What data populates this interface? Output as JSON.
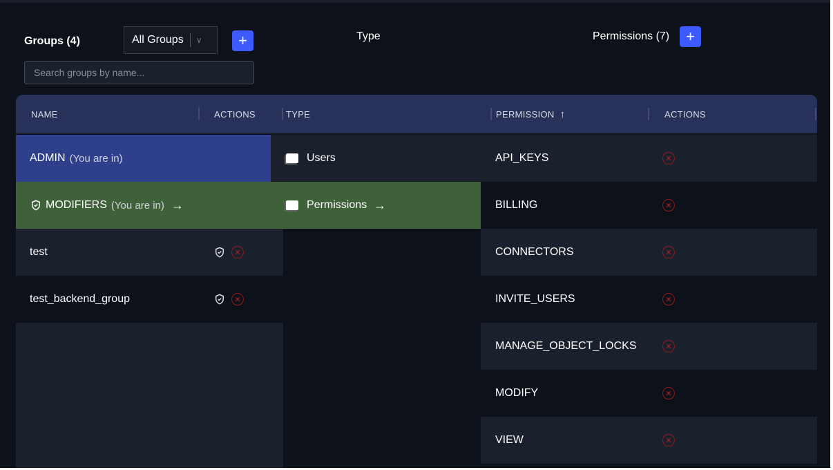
{
  "groups": {
    "title": "Groups (4)",
    "filter": "All Groups",
    "search_placeholder": "Search groups by name...",
    "col_name": "NAME",
    "col_actions": "ACTIONS",
    "rows": [
      {
        "name": "ADMIN",
        "note": "(You are in)"
      },
      {
        "name": "MODIFIERS",
        "note": "(You are in)"
      },
      {
        "name": "test"
      },
      {
        "name": "test_backend_group"
      }
    ]
  },
  "type": {
    "title": "Type",
    "col": "TYPE",
    "rows": [
      "Users",
      "Permissions"
    ]
  },
  "permissions": {
    "title": "Permissions (7)",
    "col_permission": "PERMISSION",
    "col_actions": "ACTIONS",
    "rows": [
      "API_KEYS",
      "BILLING",
      "CONNECTORS",
      "INVITE_USERS",
      "MANAGE_OBJECT_LOCKS",
      "MODIFY",
      "VIEW"
    ]
  },
  "colors": {
    "accent": "#3d5afe",
    "selected_blue": "#2e3f8c",
    "selected_green": "#3f6139",
    "header": "#283159",
    "danger": "#b02020"
  }
}
